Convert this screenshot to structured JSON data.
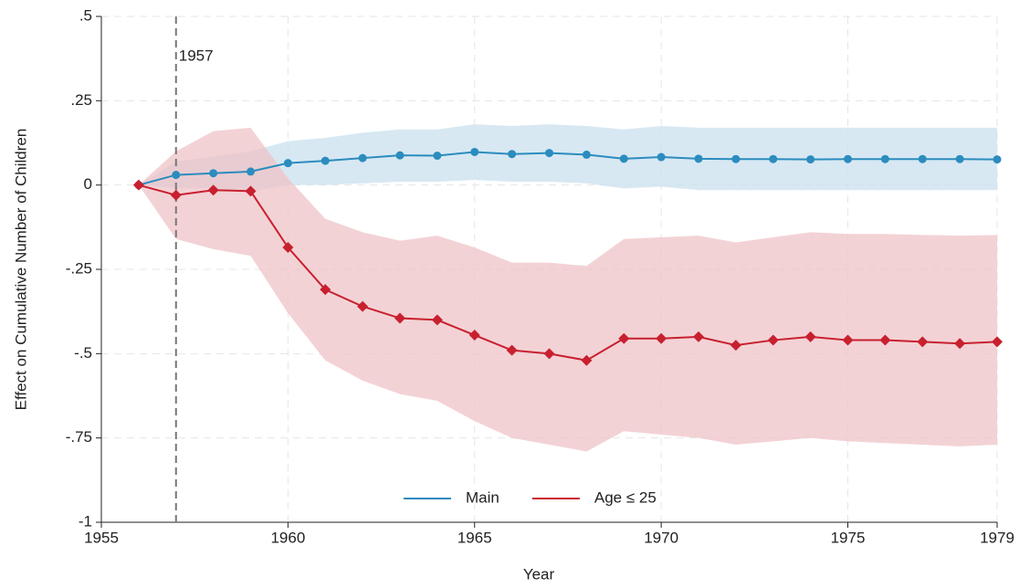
{
  "chart_data": {
    "type": "line",
    "x_label": "Year",
    "y_label": "Effect on Cumulative Number of Children",
    "x": [
      1956,
      1957,
      1958,
      1959,
      1960,
      1961,
      1962,
      1963,
      1964,
      1965,
      1966,
      1967,
      1968,
      1969,
      1970,
      1971,
      1972,
      1973,
      1974,
      1975,
      1976,
      1977,
      1978,
      1979
    ],
    "series": [
      {
        "name": "Main",
        "color": "#2b8cbe",
        "band_color": "#c9e0ef",
        "marker": "circle",
        "values": [
          0,
          0.03,
          0.035,
          0.04,
          0.065,
          0.072,
          0.08,
          0.088,
          0.087,
          0.098,
          0.092,
          0.095,
          0.09,
          0.078,
          0.083,
          0.078,
          0.077,
          0.077,
          0.076,
          0.077,
          0.077,
          0.077,
          0.077,
          0.076
        ],
        "upper": [
          0,
          0.07,
          0.085,
          0.1,
          0.13,
          0.14,
          0.155,
          0.165,
          0.165,
          0.18,
          0.175,
          0.18,
          0.175,
          0.165,
          0.175,
          0.17,
          0.17,
          0.17,
          0.17,
          0.17,
          0.17,
          0.17,
          0.17,
          0.17
        ],
        "lower": [
          0,
          -0.01,
          -0.01,
          -0.02,
          0,
          0,
          0.005,
          0.01,
          0.01,
          0.015,
          0.01,
          0.01,
          0.005,
          -0.01,
          -0.005,
          -0.015,
          -0.015,
          -0.015,
          -0.015,
          -0.015,
          -0.015,
          -0.015,
          -0.015,
          -0.015
        ]
      },
      {
        "name": "Age ≤ 25",
        "color": "#c8202f",
        "band_color": "#efc3c7",
        "marker": "diamond",
        "values": [
          0,
          -0.03,
          -0.015,
          -0.018,
          -0.185,
          -0.31,
          -0.36,
          -0.395,
          -0.4,
          -0.445,
          -0.49,
          -0.5,
          -0.52,
          -0.455,
          -0.455,
          -0.45,
          -0.475,
          -0.46,
          -0.45,
          -0.46,
          -0.46,
          -0.465,
          -0.47,
          -0.465
        ],
        "upper": [
          0,
          0.1,
          0.16,
          0.17,
          0.02,
          -0.1,
          -0.14,
          -0.165,
          -0.15,
          -0.185,
          -0.23,
          -0.23,
          -0.24,
          -0.16,
          -0.155,
          -0.15,
          -0.17,
          -0.155,
          -0.14,
          -0.145,
          -0.145,
          -0.148,
          -0.15,
          -0.148
        ],
        "lower": [
          0,
          -0.16,
          -0.19,
          -0.21,
          -0.38,
          -0.52,
          -0.58,
          -0.62,
          -0.64,
          -0.7,
          -0.75,
          -0.77,
          -0.79,
          -0.73,
          -0.74,
          -0.75,
          -0.77,
          -0.76,
          -0.75,
          -0.76,
          -0.765,
          -0.77,
          -0.775,
          -0.77
        ]
      }
    ],
    "xlim": [
      1955,
      1979
    ],
    "xticks": [
      1955,
      1960,
      1965,
      1970,
      1975,
      1979
    ],
    "ylim": [
      -1,
      0.5
    ],
    "yticks": [
      {
        "value": 0.5,
        "label": ".5"
      },
      {
        "value": 0.25,
        "label": ".25"
      },
      0,
      {
        "value": -0.25,
        "label": "-.25"
      },
      {
        "value": -0.5,
        "label": "-.5"
      },
      {
        "value": -0.75,
        "label": "-.75"
      },
      -1
    ],
    "grid": true,
    "legend": "bottom",
    "annotations": [
      {
        "x": 1957,
        "text": "1957"
      }
    ]
  }
}
